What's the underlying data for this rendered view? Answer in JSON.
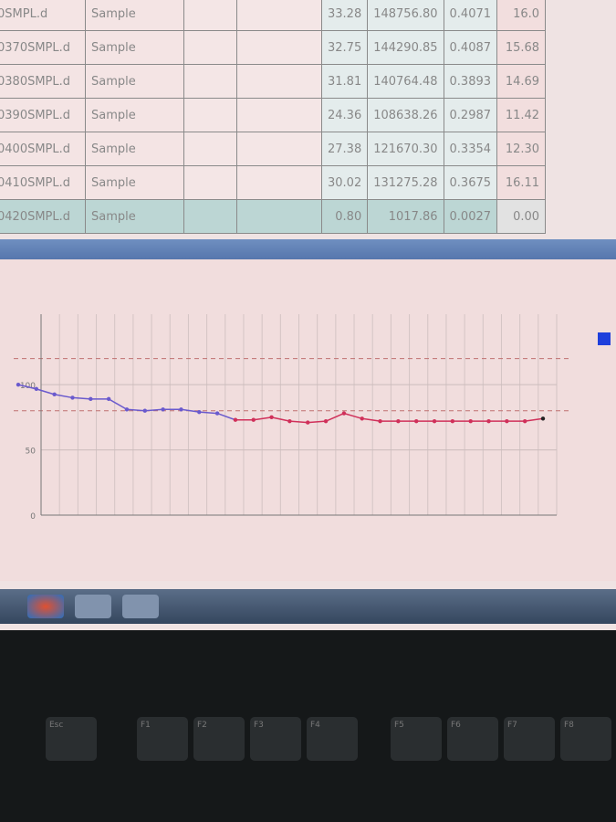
{
  "table": {
    "rows": [
      {
        "name": "0SMPL.d",
        "type": "Sample",
        "a": "33.28",
        "b": "148756.80",
        "c": "0.4071",
        "d": "16.0"
      },
      {
        "name": "0370SMPL.d",
        "type": "Sample",
        "a": "32.75",
        "b": "144290.85",
        "c": "0.4087",
        "d": "15.68"
      },
      {
        "name": "0380SMPL.d",
        "type": "Sample",
        "a": "31.81",
        "b": "140764.48",
        "c": "0.3893",
        "d": "14.69"
      },
      {
        "name": "0390SMPL.d",
        "type": "Sample",
        "a": "24.36",
        "b": "108638.26",
        "c": "0.2987",
        "d": "11.42"
      },
      {
        "name": "0400SMPL.d",
        "type": "Sample",
        "a": "27.38",
        "b": "121670.30",
        "c": "0.3354",
        "d": "12.30"
      },
      {
        "name": "0410SMPL.d",
        "type": "Sample",
        "a": "30.02",
        "b": "131275.28",
        "c": "0.3675",
        "d": "16.11"
      },
      {
        "name": "0420SMPL.d",
        "type": "Sample",
        "a": "0.80",
        "b": "1017.86",
        "c": "0.0027",
        "d": "0.00"
      }
    ],
    "selected_row": 6
  },
  "chart_data": {
    "type": "line",
    "y_ticks": [
      "0",
      "50",
      "100"
    ],
    "ylim": [
      0,
      140
    ],
    "grid": true,
    "reference_lines": [
      120,
      80
    ],
    "legend_placement": "top-right",
    "colors": {
      "early": "#6a5acd",
      "late": "#d0305a",
      "last": "#222222",
      "legend": "#1f3fdc",
      "ref": "#c07070"
    },
    "values": [
      100,
      96.7,
      92.5,
      90,
      89,
      89,
      81,
      80,
      81,
      81,
      79,
      78,
      73,
      73,
      75,
      72,
      71,
      72,
      78,
      74,
      72,
      72,
      72,
      72,
      72,
      72,
      72,
      72,
      72,
      74
    ],
    "color_split_index": 12
  },
  "taskbar": {
    "icons": [
      "start-orb-icon",
      "app-icon",
      "app-icon-2"
    ]
  },
  "keyboard": {
    "keys": [
      "Esc",
      "F1",
      "F2",
      "F3",
      "F4",
      "F5",
      "F6",
      "F7",
      "F8"
    ]
  }
}
